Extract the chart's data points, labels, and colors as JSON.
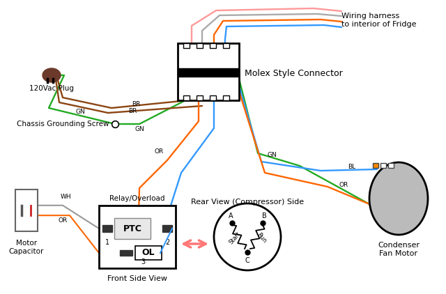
{
  "bg_color": "#ffffff",
  "wire_colors": {
    "green": "#22aa22",
    "brown": "#8B4513",
    "orange": "#FF6600",
    "blue": "#3399FF",
    "white": "#999999",
    "pink": "#FF9999",
    "gray": "#aaaaaa"
  },
  "labels": {
    "120vac": "120Vac Plug",
    "chassis": "Chassis Grounding Screw",
    "motor_cap": "Motor\nCapacitor",
    "molex": "Molex Style Connector",
    "wiring_harness": "Wiring harness\nto interior of Fridge",
    "relay": "Relay/Overload",
    "front_view": "Front Side View",
    "rear_view": "Rear View (Compressor) Side",
    "condenser": "Condenser\nFan Motor",
    "ptc": "PTC",
    "ol": "OL",
    "br": "BR",
    "gn": "GN",
    "or": "OR",
    "wh": "WH",
    "bl": "BL"
  }
}
